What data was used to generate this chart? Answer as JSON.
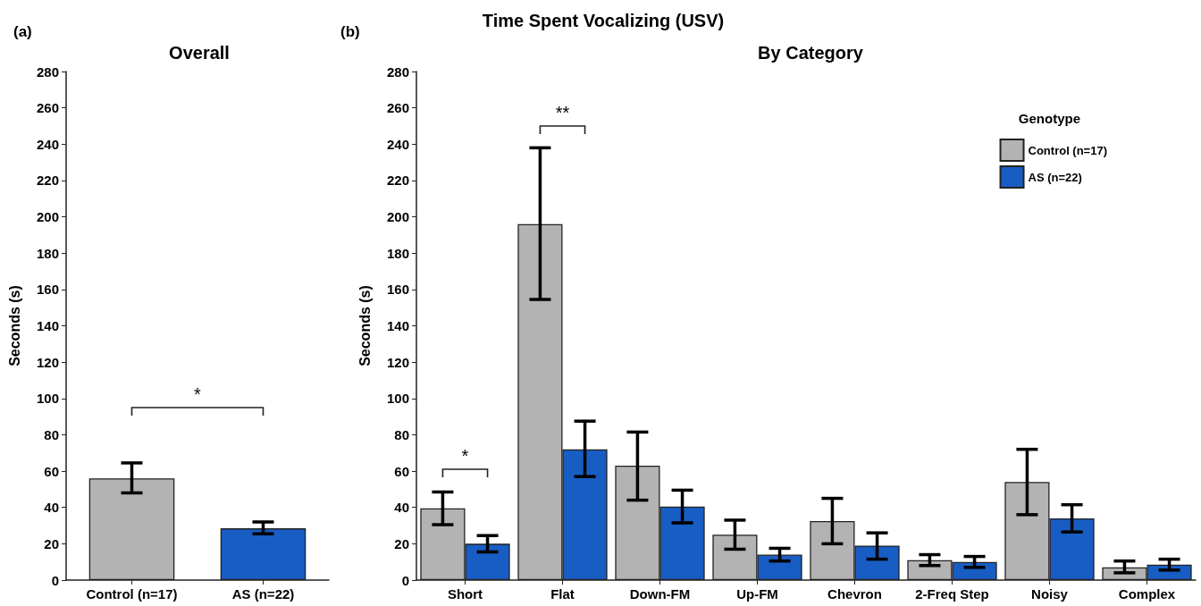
{
  "chart_data": [
    {
      "type": "bar",
      "title": "Overall",
      "ylabel": "Seconds (s)",
      "categories": [
        "Control (n=17)",
        "AS (n=22)"
      ],
      "values": [
        56,
        28.5
      ],
      "colors": [
        "#b3b3b3",
        "#185dc3"
      ],
      "errors": [
        [
          48,
          64.5
        ],
        [
          25.5,
          32
        ]
      ],
      "ylim": [
        0,
        280
      ],
      "yticks": [
        0,
        20,
        40,
        60,
        80,
        100,
        120,
        140,
        160,
        180,
        200,
        220,
        240,
        260,
        280
      ],
      "grid": false,
      "legend": false,
      "annotations": [
        "(a)",
        "*"
      ]
    },
    {
      "type": "bar",
      "title": "Time Spent Vocalizing (USV)",
      "subtitle": "By Category",
      "ylabel": "Seconds (s)",
      "categories": [
        "Short",
        "Flat",
        "Down-FM",
        "Up-FM",
        "Chevron",
        "2-Freq Step",
        "Noisy",
        "Complex"
      ],
      "series": [
        {
          "name": "Control (n=17)",
          "color": "#b3b3b3",
          "values": [
            39.5,
            196,
            63,
            25,
            32.5,
            11,
            54,
            7
          ],
          "errors": [
            [
              30.5,
              48.5
            ],
            [
              154.5,
              238
            ],
            [
              44,
              81.5
            ],
            [
              17,
              33
            ],
            [
              20,
              45
            ],
            [
              8,
              14
            ],
            [
              36,
              72
            ],
            [
              4,
              10.5
            ]
          ]
        },
        {
          "name": "AS (n=22)",
          "color": "#185dc3",
          "values": [
            20,
            72,
            40.5,
            14,
            19,
            10,
            34,
            8.5
          ],
          "errors": [
            [
              15.5,
              24.5
            ],
            [
              57,
              87.5
            ],
            [
              31.5,
              49.5
            ],
            [
              10.5,
              17.5
            ],
            [
              11.5,
              26
            ],
            [
              7,
              13
            ],
            [
              26.5,
              41.5
            ],
            [
              5.5,
              11.5
            ]
          ]
        }
      ],
      "legend_title": "Genotype",
      "legend": "top right",
      "ylim": [
        0,
        280
      ],
      "yticks": [
        0,
        20,
        40,
        60,
        80,
        100,
        120,
        140,
        160,
        180,
        200,
        220,
        240,
        260,
        280
      ],
      "grid": false,
      "annotations": [
        "(b)",
        "*",
        "**"
      ]
    }
  ]
}
